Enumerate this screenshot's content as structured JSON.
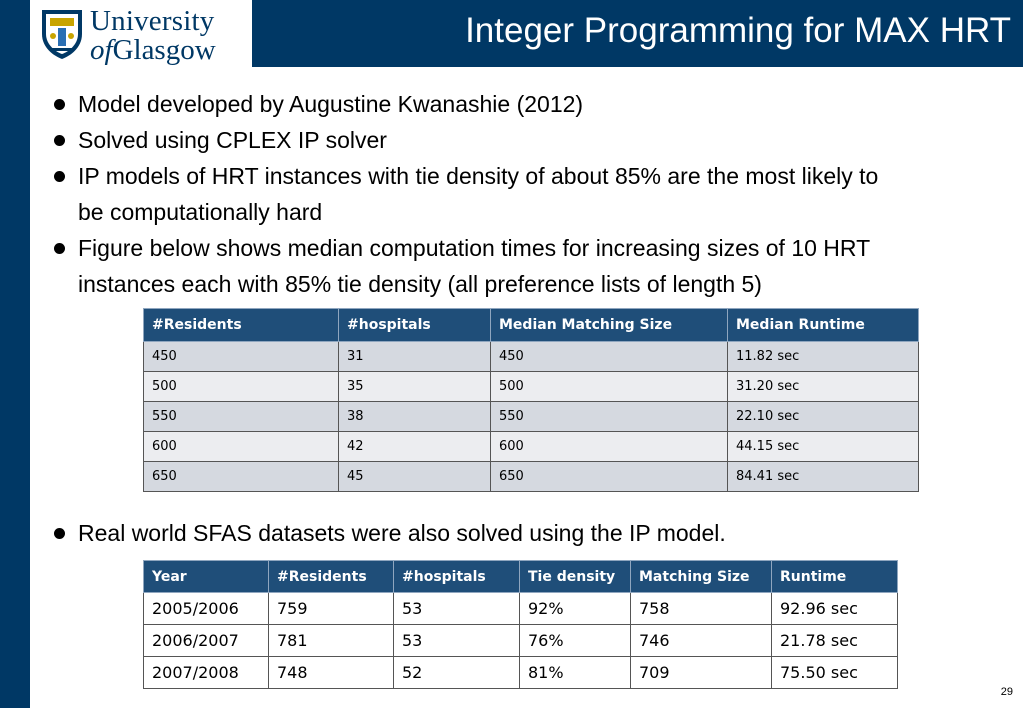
{
  "header": {
    "title": "Integer Programming for MAX HRT",
    "logo": {
      "line1": "University",
      "line2_of": "of",
      "line2_rest": "Glasgow"
    }
  },
  "bullets": [
    {
      "line1": "Model developed by Augustine Kwanashie (2012)"
    },
    {
      "line1": "Solved using CPLEX IP solver"
    },
    {
      "line1": "IP models of HRT instances with tie density of about 85% are the most likely to",
      "line2": "be computationally hard"
    },
    {
      "line1": "Figure below shows median computation times for increasing sizes of 10 HRT",
      "line2": "instances each with 85% tie density (all preference lists of length 5)"
    }
  ],
  "bullet5": "Real world SFAS datasets were also solved using the IP model.",
  "table1": {
    "headers": [
      "#Residents",
      "#hospitals",
      "Median Matching Size",
      "Median Runtime"
    ],
    "rows": [
      [
        "450",
        "31",
        "450",
        "11.82 sec"
      ],
      [
        "500",
        "35",
        "500",
        "31.20 sec"
      ],
      [
        "550",
        "38",
        "550",
        "22.10 sec"
      ],
      [
        "600",
        "42",
        "600",
        "44.15 sec"
      ],
      [
        "650",
        "45",
        "650",
        "84.41 sec"
      ]
    ]
  },
  "table2": {
    "headers": [
      "Year",
      "#Residents",
      "#hospitals",
      "Tie density",
      "Matching Size",
      "Runtime"
    ],
    "rows": [
      [
        "2005/2006",
        "759",
        "53",
        "92%",
        "758",
        "92.96 sec"
      ],
      [
        "2006/2007",
        "781",
        "53",
        "76%",
        "746",
        "21.78 sec"
      ],
      [
        "2007/2008",
        "748",
        "52",
        "81%",
        "709",
        "75.50 sec"
      ]
    ]
  },
  "page_number": "29"
}
